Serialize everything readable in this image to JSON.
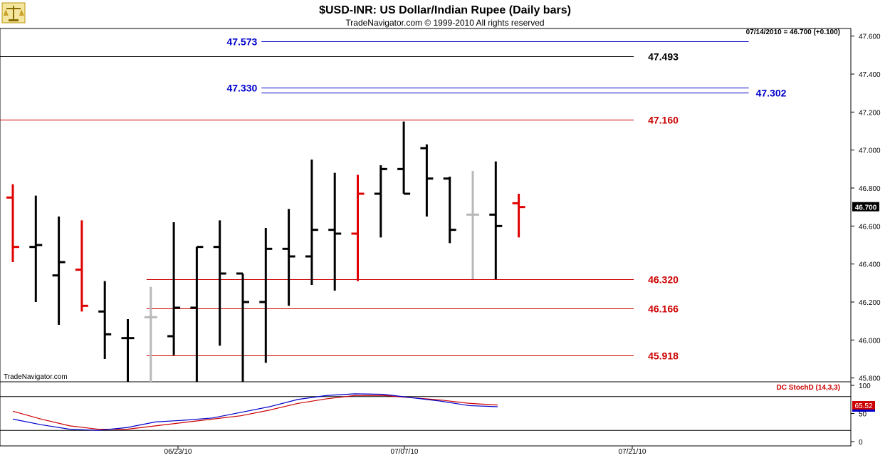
{
  "header": {
    "title": "$USD-INR:  US Dollar/Indian Rupee  (Daily bars)",
    "subtitle": "TradeNavigator.com © 1999-2010 All rights reserved"
  },
  "status": {
    "last_bar": "07/14/2010 = 46.700 (+0.100)",
    "last_price_tag": "46.700"
  },
  "watermark": "TradeNavigator.com",
  "indicator": {
    "label": "DC StochD (14,3,3)",
    "value_tag": "65.52",
    "axis_ticks": [
      "100",
      "50",
      "0"
    ]
  },
  "colors": {
    "up_bar": "#000000",
    "down_bar": "#e00000",
    "neutral_bar": "#b8b8b8",
    "blue_level": "#0000cc",
    "red_level": "#cc0000",
    "black_level": "#000000",
    "stoch_k": "#0000cc",
    "stoch_d": "#cc0000"
  },
  "chart_data": {
    "type": "ohlc",
    "ylim": [
      45.78,
      47.64
    ],
    "y_ticks": [
      "45.800",
      "46.000",
      "46.200",
      "46.400",
      "46.600",
      "46.800",
      "47.000",
      "47.200",
      "47.400",
      "47.600"
    ],
    "x_ticks": [
      "06/23/10",
      "07/07/10",
      "07/21/10"
    ],
    "bars": [
      {
        "o": 46.75,
        "h": 46.82,
        "l": 46.41,
        "c": 46.49,
        "color": "down"
      },
      {
        "o": 46.49,
        "h": 46.76,
        "l": 46.2,
        "c": 46.5,
        "color": "up"
      },
      {
        "o": 46.34,
        "h": 46.65,
        "l": 46.08,
        "c": 46.41,
        "color": "up"
      },
      {
        "o": 46.37,
        "h": 46.63,
        "l": 46.15,
        "c": 46.18,
        "color": "down"
      },
      {
        "o": 46.15,
        "h": 46.31,
        "l": 45.9,
        "c": 46.03,
        "color": "up"
      },
      {
        "o": 46.01,
        "h": 46.11,
        "l": 45.78,
        "c": 46.01,
        "color": "up"
      },
      {
        "o": 46.12,
        "h": 46.28,
        "l": 45.78,
        "c": 46.12,
        "color": "neutral"
      },
      {
        "o": 46.02,
        "h": 46.62,
        "l": 45.92,
        "c": 46.17,
        "color": "up"
      },
      {
        "o": 46.17,
        "h": 46.49,
        "l": 45.78,
        "c": 46.49,
        "color": "up"
      },
      {
        "o": 46.49,
        "h": 46.63,
        "l": 45.97,
        "c": 46.35,
        "color": "up"
      },
      {
        "o": 46.35,
        "h": 46.35,
        "l": 45.78,
        "c": 46.2,
        "color": "up"
      },
      {
        "o": 46.2,
        "h": 46.59,
        "l": 45.88,
        "c": 46.48,
        "color": "up"
      },
      {
        "o": 46.48,
        "h": 46.69,
        "l": 46.18,
        "c": 46.44,
        "color": "up"
      },
      {
        "o": 46.44,
        "h": 46.95,
        "l": 46.29,
        "c": 46.58,
        "color": "up"
      },
      {
        "o": 46.58,
        "h": 46.88,
        "l": 46.26,
        "c": 46.56,
        "color": "up"
      },
      {
        "o": 46.56,
        "h": 46.87,
        "l": 46.31,
        "c": 46.77,
        "color": "down"
      },
      {
        "o": 46.77,
        "h": 46.92,
        "l": 46.54,
        "c": 46.9,
        "color": "up"
      },
      {
        "o": 46.9,
        "h": 47.15,
        "l": 46.77,
        "c": 46.77,
        "color": "up"
      },
      {
        "o": 47.01,
        "h": 47.03,
        "l": 46.65,
        "c": 46.85,
        "color": "up"
      },
      {
        "o": 46.85,
        "h": 46.86,
        "l": 46.51,
        "c": 46.58,
        "color": "up"
      },
      {
        "o": 46.66,
        "h": 46.89,
        "l": 46.32,
        "c": 46.66,
        "color": "neutral"
      },
      {
        "o": 46.66,
        "h": 46.94,
        "l": 46.32,
        "c": 46.6,
        "color": "up"
      },
      {
        "o": 46.72,
        "h": 46.77,
        "l": 46.54,
        "c": 46.7,
        "color": "down"
      }
    ],
    "levels": [
      {
        "value": 47.573,
        "label": "47.573",
        "color": "blue",
        "x_start": 11,
        "x_end": 32,
        "label_side": "left"
      },
      {
        "value": 47.493,
        "label": "47.493",
        "color": "black",
        "x_start": -1,
        "x_end": 27,
        "label_side": "right"
      },
      {
        "value": 47.33,
        "label": "47.330",
        "color": "blue",
        "x_start": 11,
        "x_end": 32,
        "label_side": "left"
      },
      {
        "value": 47.302,
        "label": "47.302",
        "color": "blue",
        "x_start": 11,
        "x_end": 32,
        "label_side": "far-right"
      },
      {
        "value": 47.16,
        "label": "47.160",
        "color": "red",
        "x_start": -1,
        "x_end": 27,
        "label_side": "right"
      },
      {
        "value": 46.32,
        "label": "46.320",
        "color": "red",
        "x_start": 6,
        "x_end": 27,
        "label_side": "right"
      },
      {
        "value": 46.166,
        "label": "46.166",
        "color": "red",
        "x_start": 6,
        "x_end": 27,
        "label_side": "right"
      },
      {
        "value": 45.918,
        "label": "45.918",
        "color": "red",
        "x_start": 6,
        "x_end": 27,
        "label_side": "right"
      }
    ],
    "stoch": {
      "ylim": [
        0,
        100
      ],
      "ref_lines": [
        80,
        20
      ],
      "k": [
        [
          0,
          40
        ],
        [
          2,
          30
        ],
        [
          4,
          22
        ],
        [
          6,
          20
        ],
        [
          8,
          25
        ],
        [
          10,
          35
        ],
        [
          12,
          38
        ],
        [
          14,
          42
        ],
        [
          16,
          52
        ],
        [
          18,
          62
        ],
        [
          20,
          75
        ],
        [
          22,
          82
        ],
        [
          24,
          85
        ],
        [
          26,
          84
        ],
        [
          28,
          78
        ],
        [
          30,
          72
        ],
        [
          32,
          64
        ],
        [
          34,
          62
        ]
      ],
      "d": [
        [
          0,
          54
        ],
        [
          2,
          40
        ],
        [
          4,
          28
        ],
        [
          6,
          22
        ],
        [
          8,
          22
        ],
        [
          10,
          28
        ],
        [
          12,
          34
        ],
        [
          14,
          40
        ],
        [
          16,
          46
        ],
        [
          18,
          56
        ],
        [
          20,
          68
        ],
        [
          22,
          76
        ],
        [
          24,
          82
        ],
        [
          26,
          82
        ],
        [
          28,
          78
        ],
        [
          30,
          74
        ],
        [
          32,
          68
        ],
        [
          34,
          65
        ]
      ]
    }
  }
}
